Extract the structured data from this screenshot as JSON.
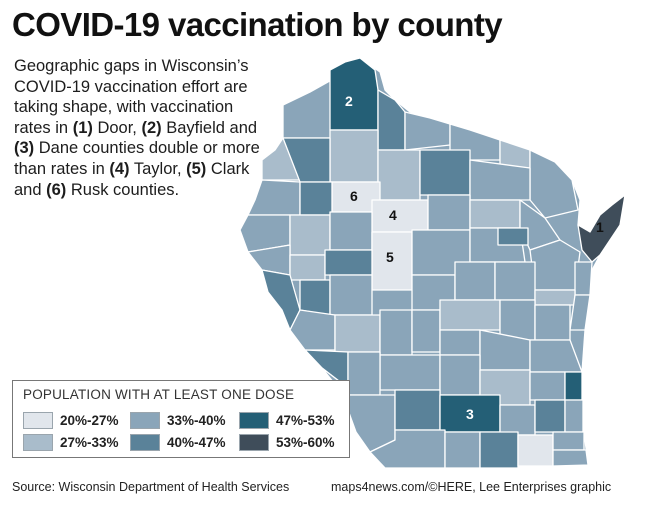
{
  "title": "COVID-19 vaccination by county",
  "intro": {
    "p1": "Geographic gaps in Wisconsin’s COVID-19 vaccination effort are taking shape, with vaccination rates in ",
    "n1": "(1)",
    "c1": " Door, ",
    "n2": "(2)",
    "c2": " Bayfield and ",
    "n3": "(3)",
    "c3": " Dane counties double or more than rates in ",
    "n4": "(4)",
    "c4": " Taylor, ",
    "n5": "(5)",
    "c5": " Clark and ",
    "n6": "(6)",
    "c6": " Rusk counties."
  },
  "legend": {
    "title": "POPULATION WITH AT LEAST ONE DOSE",
    "items": [
      {
        "label": "20%-27%",
        "color": "#e1e6ec"
      },
      {
        "label": "27%-33%",
        "color": "#a9bccb"
      },
      {
        "label": "33%-40%",
        "color": "#8aa5b9"
      },
      {
        "label": "40%-47%",
        "color": "#5a8299"
      },
      {
        "label": "47%-53%",
        "color": "#245f76"
      },
      {
        "label": "53%-60%",
        "color": "#3f4d5a"
      }
    ]
  },
  "map": {
    "state": "Wisconsin",
    "border_color": "#ffffff",
    "labels": {
      "door": "1",
      "bayfield": "2",
      "dane": "3",
      "taylor": "4",
      "clark": "5",
      "rusk": "6"
    }
  },
  "footer": {
    "source": "Source: Wisconsin Department of Health Services",
    "credit": "maps4news.com/©HERE, Lee Enterprises graphic"
  }
}
